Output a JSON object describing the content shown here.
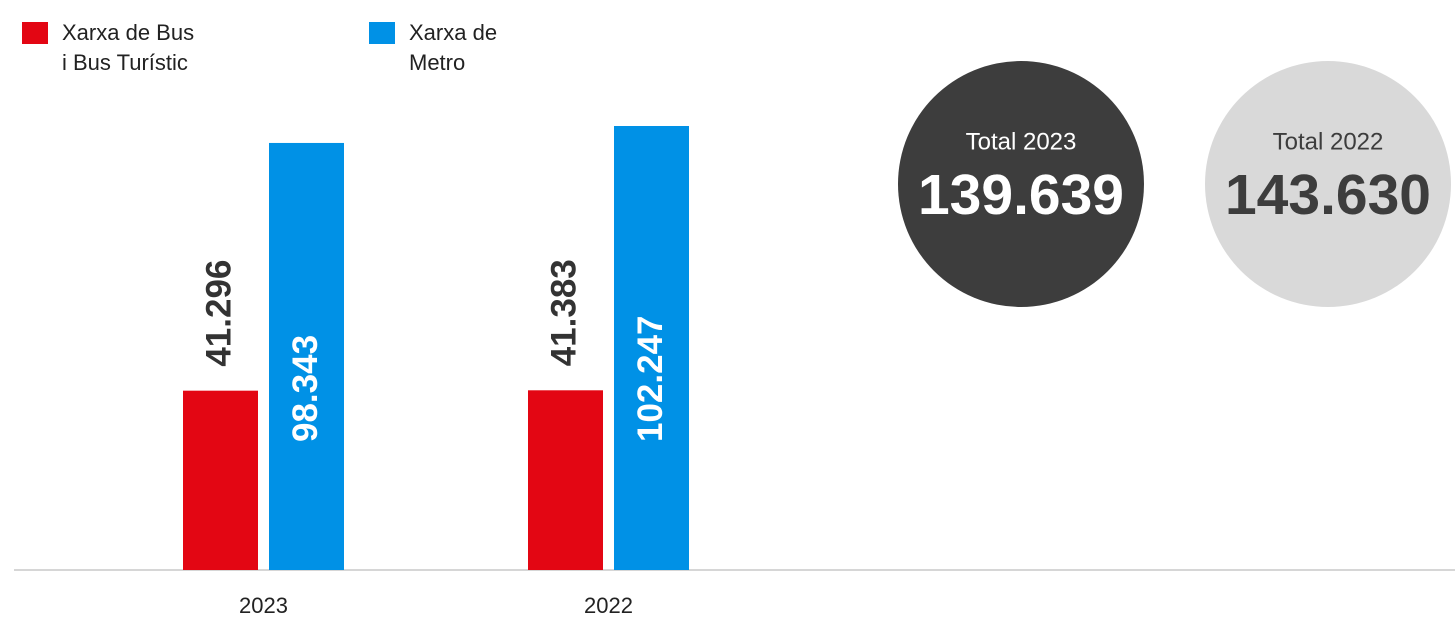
{
  "chart_data": {
    "type": "bar",
    "categories": [
      "2023",
      "2022"
    ],
    "series": [
      {
        "name": "Xarxa de Bus i Bus Turístic",
        "color": "#e30613",
        "values": [
          41296,
          41383
        ],
        "value_labels": [
          "41.296",
          "41.383"
        ]
      },
      {
        "name": "Xarxa de Metro",
        "color": "#0091e6",
        "values": [
          98343,
          102247
        ],
        "value_labels": [
          "98.343",
          "102.247"
        ]
      }
    ],
    "totals": [
      {
        "label": "Total 2023",
        "value": "139.639",
        "color": "#3d3d3d",
        "text_color": "#ffffff"
      },
      {
        "label": "Total 2022",
        "value": "143.630",
        "color": "#d9d9d9",
        "text_color": "#3d3d3d"
      }
    ]
  }
}
